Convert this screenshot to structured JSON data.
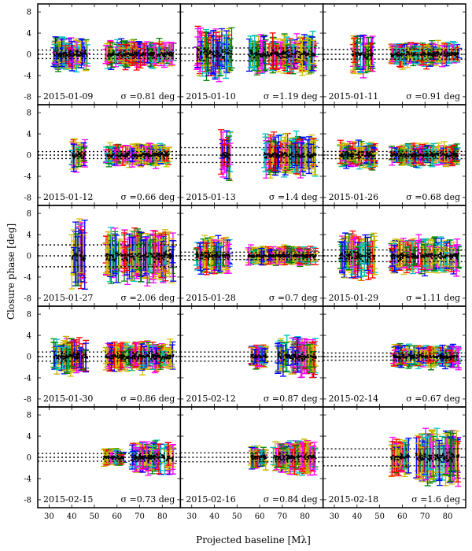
{
  "chart_data": {
    "type": "scatter",
    "title": "",
    "xlabel": "Projected baseline [Mλ]",
    "ylabel": "Closure phase [deg]",
    "xlim": [
      25,
      88
    ],
    "ylim": [
      -9.5,
      9.5
    ],
    "x_ticks": [
      "30",
      "40",
      "50",
      "60",
      "70",
      "80"
    ],
    "y_ticks": [
      "-8",
      "-4",
      "0",
      "4",
      "8"
    ],
    "series_colors": [
      "#c8b400",
      "#00c0c0",
      "#d4c000",
      "#ff0000",
      "#008000",
      "#0000ff",
      "#ff00ff",
      "#000000"
    ],
    "grid": [
      3,
      5
    ],
    "panels": [
      {
        "date": "2015-01-09",
        "sigma": "σ =0.81 deg",
        "sigma_value": 0.81,
        "clusters": [
          {
            "x": [
              32,
              47
            ],
            "spread": 1.4,
            "err": 2.2
          },
          {
            "x": [
              55,
              85
            ],
            "spread": 1.0,
            "err": 1.8
          }
        ]
      },
      {
        "date": "2015-01-10",
        "sigma": "σ =1.19 deg",
        "sigma_value": 1.19,
        "clusters": [
          {
            "x": [
              32,
              48
            ],
            "spread": 2.0,
            "err": 3.2
          },
          {
            "x": [
              55,
              85
            ],
            "spread": 1.4,
            "err": 2.6
          }
        ]
      },
      {
        "date": "2015-01-11",
        "sigma": "σ =0.91 deg",
        "sigma_value": 0.91,
        "clusters": [
          {
            "x": [
              38,
              47
            ],
            "spread": 1.5,
            "err": 2.6
          },
          {
            "x": [
              55,
              85
            ],
            "spread": 0.9,
            "err": 1.6
          }
        ]
      },
      {
        "date": "2015-01-12",
        "sigma": "σ =0.66 deg",
        "sigma_value": 0.66,
        "clusters": [
          {
            "x": [
              40,
              46
            ],
            "spread": 1.0,
            "err": 2.0
          },
          {
            "x": [
              55,
              83
            ],
            "spread": 0.8,
            "err": 1.5
          }
        ]
      },
      {
        "date": "2015-01-13",
        "sigma": "σ =1.4 deg",
        "sigma_value": 1.4,
        "clusters": [
          {
            "x": [
              43,
              47
            ],
            "spread": 1.5,
            "err": 3.5
          },
          {
            "x": [
              62,
              85
            ],
            "spread": 1.2,
            "err": 2.8
          }
        ]
      },
      {
        "date": "2015-01-26",
        "sigma": "σ =0.68 deg",
        "sigma_value": 0.68,
        "clusters": [
          {
            "x": [
              32,
              48
            ],
            "spread": 1.1,
            "err": 1.8
          },
          {
            "x": [
              55,
              85
            ],
            "spread": 0.8,
            "err": 1.5
          }
        ]
      },
      {
        "date": "2015-01-27",
        "sigma": "σ =2.06 deg",
        "sigma_value": 2.06,
        "clusters": [
          {
            "x": [
              40,
              46
            ],
            "spread": 2.5,
            "err": 5.0
          },
          {
            "x": [
              55,
              85
            ],
            "spread": 1.8,
            "err": 3.6
          }
        ]
      },
      {
        "date": "2015-01-28",
        "sigma": "σ =0.7 deg",
        "sigma_value": 0.7,
        "clusters": [
          {
            "x": [
              32,
              47
            ],
            "spread": 1.2,
            "err": 2.4
          },
          {
            "x": [
              55,
              85
            ],
            "spread": 0.6,
            "err": 1.3
          }
        ]
      },
      {
        "date": "2015-01-29",
        "sigma": "σ =1.11 deg",
        "sigma_value": 1.11,
        "clusters": [
          {
            "x": [
              32,
              48
            ],
            "spread": 1.8,
            "err": 3.0
          },
          {
            "x": [
              55,
              85
            ],
            "spread": 1.2,
            "err": 2.4
          }
        ]
      },
      {
        "date": "2015-01-30",
        "sigma": "σ =0.86 deg",
        "sigma_value": 0.86,
        "clusters": [
          {
            "x": [
              32,
              47
            ],
            "spread": 1.3,
            "err": 2.4
          },
          {
            "x": [
              55,
              85
            ],
            "spread": 1.0,
            "err": 2.0
          }
        ]
      },
      {
        "date": "2015-02-12",
        "sigma": "σ =0.87 deg",
        "sigma_value": 0.87,
        "clusters": [
          {
            "x": [
              56,
              63
            ],
            "spread": 0.8,
            "err": 1.6
          },
          {
            "x": [
              68,
              85
            ],
            "spread": 1.2,
            "err": 2.6
          }
        ]
      },
      {
        "date": "2015-02-14",
        "sigma": "σ =0.67 deg",
        "sigma_value": 0.67,
        "clusters": [
          {
            "x": [
              56,
              85
            ],
            "spread": 0.8,
            "err": 1.6
          }
        ]
      },
      {
        "date": "2015-02-15",
        "sigma": "σ =0.73 deg",
        "sigma_value": 0.73,
        "clusters": [
          {
            "x": [
              54,
              63
            ],
            "spread": 0.6,
            "err": 1.2
          },
          {
            "x": [
              66,
              85
            ],
            "spread": 1.0,
            "err": 2.2
          }
        ]
      },
      {
        "date": "2015-02-16",
        "sigma": "σ =0.84 deg",
        "sigma_value": 0.84,
        "clusters": [
          {
            "x": [
              56,
              63
            ],
            "spread": 0.8,
            "err": 1.6
          },
          {
            "x": [
              66,
              85
            ],
            "spread": 1.0,
            "err": 2.4
          }
        ]
      },
      {
        "date": "2015-02-18",
        "sigma": "σ =1.6 deg",
        "sigma_value": 1.6,
        "clusters": [
          {
            "x": [
              55,
              63
            ],
            "spread": 1.2,
            "err": 2.6
          },
          {
            "x": [
              66,
              85
            ],
            "spread": 1.8,
            "err": 3.8
          }
        ]
      }
    ]
  }
}
